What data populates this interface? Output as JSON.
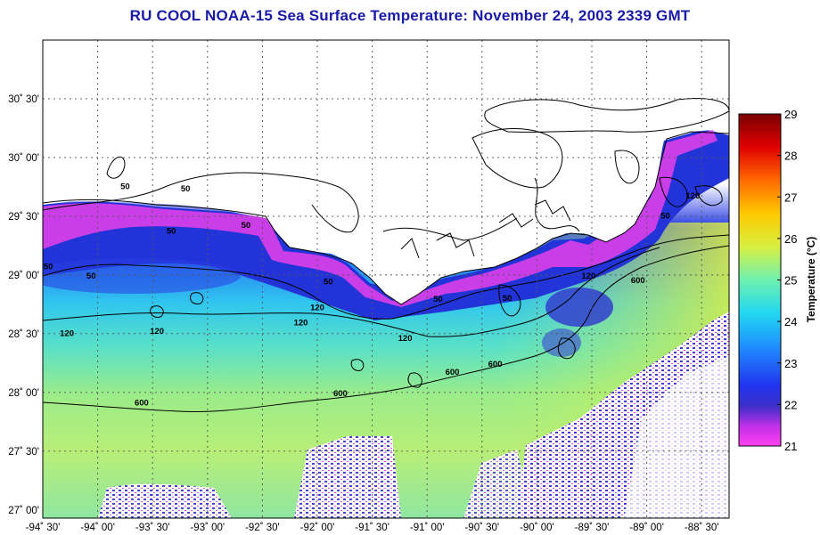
{
  "title": "RU COOL  NOAA-15  Sea Surface Temperature:  November 24, 2003 2339 GMT",
  "map": {
    "lat_labels": [
      "30˚ 30'",
      "30˚ 00'",
      "29˚ 30'",
      "29˚ 00'",
      "28˚ 30'",
      "28˚ 00'",
      "27˚ 30'",
      "27˚ 00'"
    ],
    "lon_labels": [
      "-94˚ 30'",
      "-94˚ 00'",
      "-93˚ 30'",
      "-93˚ 00'",
      "-92˚ 30'",
      "-92˚ 00'",
      "-91˚ 30'",
      "-91˚ 00'",
      "-90˚ 30'",
      "-90˚ 00'",
      "-89˚ 30'",
      "-89˚ 00'",
      "-88˚ 30'"
    ],
    "lat_range": [
      26.93,
      31.0
    ],
    "lon_range": [
      -94.5,
      -88.25
    ],
    "isobath_labels": [
      {
        "text": "50",
        "lon": -93.75,
        "lat": 29.73
      },
      {
        "text": "50",
        "lon": -93.2,
        "lat": 29.71
      },
      {
        "text": "50",
        "lon": -93.33,
        "lat": 29.35
      },
      {
        "text": "50",
        "lon": -92.65,
        "lat": 29.4
      },
      {
        "text": "50",
        "lon": -94.45,
        "lat": 29.05
      },
      {
        "text": "50",
        "lon": -94.06,
        "lat": 28.97
      },
      {
        "text": "50",
        "lon": -91.9,
        "lat": 28.92
      },
      {
        "text": "50",
        "lon": -90.9,
        "lat": 28.77
      },
      {
        "text": "50",
        "lon": -90.27,
        "lat": 28.78
      },
      {
        "text": "50",
        "lon": -88.83,
        "lat": 29.48
      },
      {
        "text": "120",
        "lon": -92.0,
        "lat": 28.7
      },
      {
        "text": "120",
        "lon": -92.15,
        "lat": 28.57
      },
      {
        "text": "120",
        "lon": -93.46,
        "lat": 28.5
      },
      {
        "text": "120",
        "lon": -94.28,
        "lat": 28.48
      },
      {
        "text": "120",
        "lon": -91.2,
        "lat": 28.44
      },
      {
        "text": "120",
        "lon": -89.53,
        "lat": 28.97
      },
      {
        "text": "120",
        "lon": -88.58,
        "lat": 29.65
      },
      {
        "text": "600",
        "lon": -90.77,
        "lat": 28.15
      },
      {
        "text": "600",
        "lon": -90.38,
        "lat": 28.22
      },
      {
        "text": "600",
        "lon": -89.08,
        "lat": 28.93
      },
      {
        "text": "600",
        "lon": -93.6,
        "lat": 27.89
      },
      {
        "text": "600",
        "lon": -91.79,
        "lat": 27.97
      }
    ]
  },
  "colorbar": {
    "title": "Temperature (°C)",
    "min": 21,
    "max": 29,
    "ticks": [
      "29",
      "28",
      "27",
      "26",
      "25",
      "24",
      "23",
      "22",
      "21"
    ],
    "colors": [
      "#ff3ff0",
      "#c030e8",
      "#3c2fc8",
      "#2233ee",
      "#1f8fff",
      "#22d8f0",
      "#6ef0b0",
      "#d8f040",
      "#ffc800",
      "#ff6a00",
      "#e00000",
      "#7a0000"
    ]
  }
}
